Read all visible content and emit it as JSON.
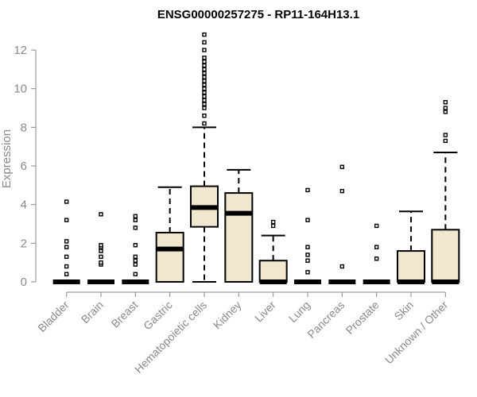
{
  "chart_data": {
    "type": "box",
    "title": "ENSG00000257275 - RP11-164H13.1",
    "xlabel": "",
    "ylabel": "Expression",
    "ylim": [
      -0.3,
      12.9
    ],
    "yticks": [
      0,
      2,
      4,
      6,
      8,
      10,
      12
    ],
    "grid": false,
    "legend": "none",
    "colors": {
      "box_fill": "#efe8cf",
      "stroke": "#000000",
      "axis": "#8a8a8a"
    },
    "categories": [
      "Bladder",
      "Brain",
      "Breast",
      "Gastric",
      "Hematopoietic cells",
      "Kidney",
      "Liver",
      "Lung",
      "Pancreas",
      "Prostate",
      "Skin",
      "Unknown / Other"
    ],
    "boxes": [
      {
        "min": 0,
        "q1": 0,
        "median": 0,
        "q3": 0,
        "max": 0,
        "outliers": [
          0.4,
          0.8,
          1.3,
          1.8,
          2.1,
          3.2,
          4.15
        ]
      },
      {
        "min": 0,
        "q1": 0,
        "median": 0,
        "q3": 0,
        "max": 0,
        "outliers": [
          0.9,
          1.0,
          1.3,
          1.6,
          1.8,
          1.9,
          3.5
        ]
      },
      {
        "min": 0,
        "q1": 0,
        "median": 0,
        "q3": 0,
        "max": 0,
        "outliers": [
          0.4,
          0.9,
          1.1,
          1.3,
          1.9,
          2.8,
          3.2,
          3.4
        ]
      },
      {
        "min": 0,
        "q1": 0,
        "median": 1.7,
        "q3": 2.55,
        "max": 4.9,
        "outliers": []
      },
      {
        "min": 0,
        "q1": 2.85,
        "median": 3.85,
        "q3": 4.95,
        "max": 8.0,
        "outliers": [
          8.2,
          8.6,
          9.0,
          9.2,
          9.4,
          9.6,
          9.8,
          10.0,
          10.2,
          10.4,
          10.6,
          10.8,
          11.0,
          11.2,
          11.4,
          11.6,
          12.0,
          12.4,
          12.8
        ]
      },
      {
        "min": 0,
        "q1": 0,
        "median": 3.55,
        "q3": 4.6,
        "max": 5.8,
        "outliers": []
      },
      {
        "min": 0,
        "q1": 0,
        "median": 0,
        "q3": 1.1,
        "max": 2.4,
        "outliers": [
          2.9,
          3.1
        ]
      },
      {
        "min": 0,
        "q1": 0,
        "median": 0,
        "q3": 0,
        "max": 0,
        "outliers": [
          0.5,
          1.1,
          1.4,
          1.8,
          3.2,
          4.75
        ]
      },
      {
        "min": 0,
        "q1": 0,
        "median": 0,
        "q3": 0,
        "max": 0,
        "outliers": [
          0.8,
          4.7,
          5.95
        ]
      },
      {
        "min": 0,
        "q1": 0,
        "median": 0,
        "q3": 0,
        "max": 0,
        "outliers": [
          1.2,
          1.8,
          2.9
        ]
      },
      {
        "min": 0,
        "q1": 0,
        "median": 0,
        "q3": 1.6,
        "max": 3.65,
        "outliers": []
      },
      {
        "min": 0,
        "q1": 0,
        "median": 0,
        "q3": 2.7,
        "max": 6.7,
        "outliers": [
          7.3,
          7.6,
          8.8,
          9.0,
          9.3
        ]
      }
    ]
  }
}
